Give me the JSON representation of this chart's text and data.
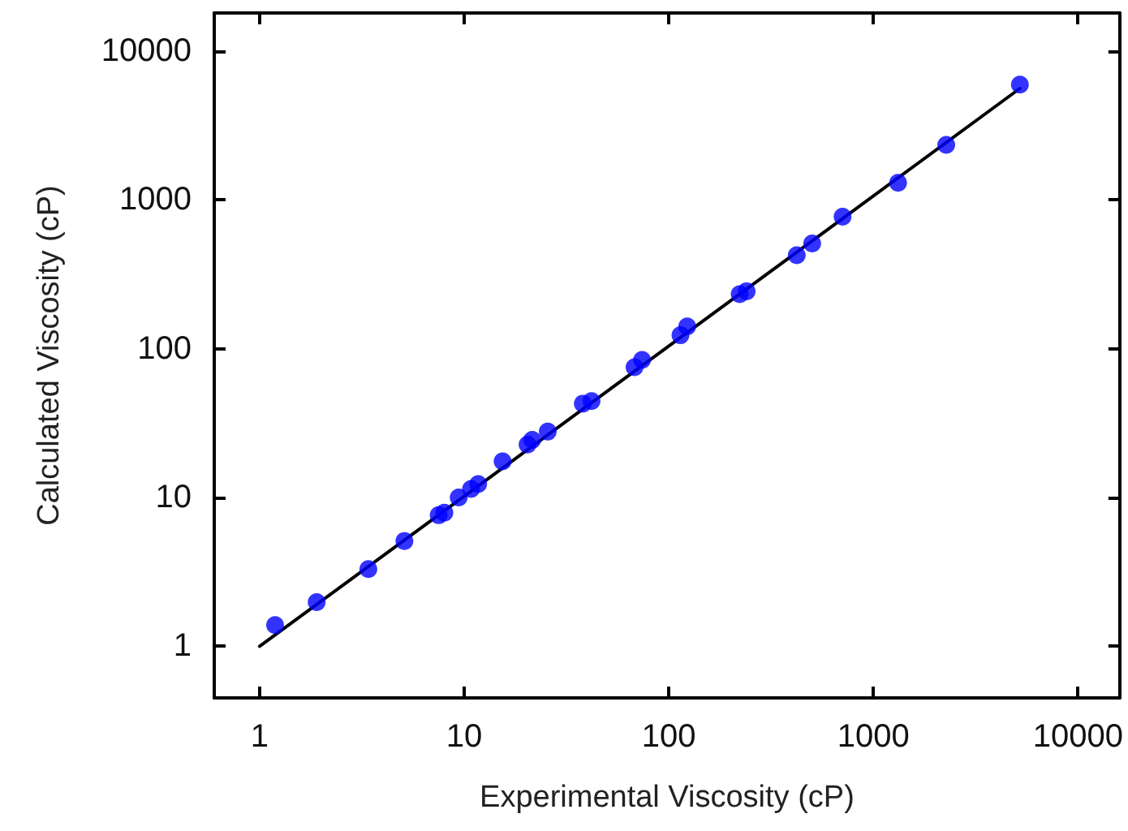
{
  "chart_data": {
    "type": "scatter",
    "xlabel": "Experimental Viscosity (cP)",
    "ylabel": "Calculated Viscosity (cP)",
    "log": "xy",
    "grid": false,
    "marker": "circle",
    "xlim": [
      0.6,
      16000
    ],
    "ylim": [
      0.45,
      18000
    ],
    "xticks": [
      1,
      10,
      100,
      1000,
      10000
    ],
    "yticks": [
      1,
      10,
      100,
      1000,
      10000
    ],
    "series": [
      {
        "color": "#0000ff",
        "x": [
          1.19,
          1.9,
          3.4,
          5.1,
          7.5,
          8.0,
          9.4,
          10.8,
          11.7,
          15.4,
          20.4,
          21.5,
          25.6,
          38,
          41.9,
          68,
          74,
          114,
          123,
          222,
          240,
          422,
          502,
          707,
          1320,
          2270,
          5200
        ],
        "values": [
          1.39,
          1.98,
          3.3,
          5.1,
          7.6,
          7.9,
          10,
          11.4,
          12.3,
          17.5,
          22.7,
          24.4,
          27.7,
          42.7,
          44.4,
          75,
          84,
          123,
          141,
          232,
          243,
          424,
          509,
          771,
          1300,
          2340,
          5940
        ]
      },
      {
        "type": "line",
        "color": "#000000",
        "marker": "none",
        "line_style": "solid",
        "x": [
          1,
          5200
        ],
        "values": [
          1,
          5600
        ]
      }
    ]
  }
}
